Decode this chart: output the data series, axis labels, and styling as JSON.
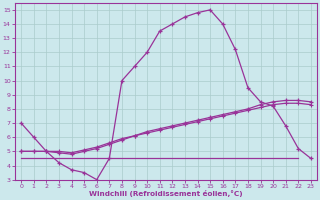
{
  "bg_color": "#cce8ec",
  "line_color": "#993399",
  "grid_color": "#aacccc",
  "xlabel": "Windchill (Refroidissement éolien,°C)",
  "xlim": [
    -0.5,
    23.5
  ],
  "ylim": [
    3,
    15.5
  ],
  "xticks": [
    0,
    1,
    2,
    3,
    4,
    5,
    6,
    7,
    8,
    9,
    10,
    11,
    12,
    13,
    14,
    15,
    16,
    17,
    18,
    19,
    20,
    21,
    22,
    23
  ],
  "yticks": [
    3,
    4,
    5,
    6,
    7,
    8,
    9,
    10,
    11,
    12,
    13,
    14,
    15
  ],
  "curve1_x": [
    0,
    1,
    2,
    3,
    4,
    5,
    6,
    7,
    8,
    9,
    10,
    11,
    12,
    13,
    14,
    15,
    16,
    17,
    18,
    19,
    20,
    21,
    22,
    23
  ],
  "curve1_y": [
    7.0,
    6.0,
    5.0,
    4.2,
    3.7,
    3.5,
    3.0,
    4.5,
    10.0,
    11.0,
    12.0,
    13.5,
    14.0,
    14.5,
    14.8,
    15.0,
    14.0,
    12.2,
    9.5,
    8.5,
    8.2,
    6.8,
    5.2,
    4.5
  ],
  "curve2_x": [
    0,
    1,
    2,
    3,
    4,
    5,
    6,
    7,
    8,
    9,
    10,
    11,
    12,
    13,
    14,
    15,
    16,
    17,
    18,
    19,
    20,
    21,
    22,
    23
  ],
  "curve2_y": [
    5.0,
    5.0,
    5.0,
    4.9,
    4.8,
    5.0,
    5.2,
    5.5,
    5.8,
    6.1,
    6.4,
    6.6,
    6.8,
    7.0,
    7.2,
    7.4,
    7.6,
    7.8,
    8.0,
    8.3,
    8.5,
    8.6,
    8.6,
    8.5
  ],
  "curve3_x": [
    0,
    1,
    2,
    3,
    4,
    5,
    6,
    7,
    8,
    9,
    10,
    11,
    12,
    13,
    14,
    15,
    16,
    17,
    18,
    19,
    20,
    21,
    22,
    23
  ],
  "curve3_y": [
    5.0,
    5.0,
    5.0,
    5.0,
    4.9,
    5.1,
    5.3,
    5.6,
    5.9,
    6.1,
    6.3,
    6.5,
    6.7,
    6.9,
    7.1,
    7.3,
    7.5,
    7.7,
    7.9,
    8.1,
    8.3,
    8.4,
    8.4,
    8.3
  ],
  "curve4_x": [
    0,
    1,
    2,
    3,
    4,
    5,
    6,
    7,
    8,
    9,
    10,
    11,
    12,
    13,
    14,
    15,
    16,
    17,
    18,
    19,
    20,
    21,
    22
  ],
  "curve4_y": [
    4.5,
    4.5,
    4.5,
    4.5,
    4.5,
    4.5,
    4.5,
    4.5,
    4.5,
    4.5,
    4.5,
    4.5,
    4.5,
    4.5,
    4.5,
    4.5,
    4.5,
    4.5,
    4.5,
    4.5,
    4.5,
    4.5,
    4.5
  ]
}
